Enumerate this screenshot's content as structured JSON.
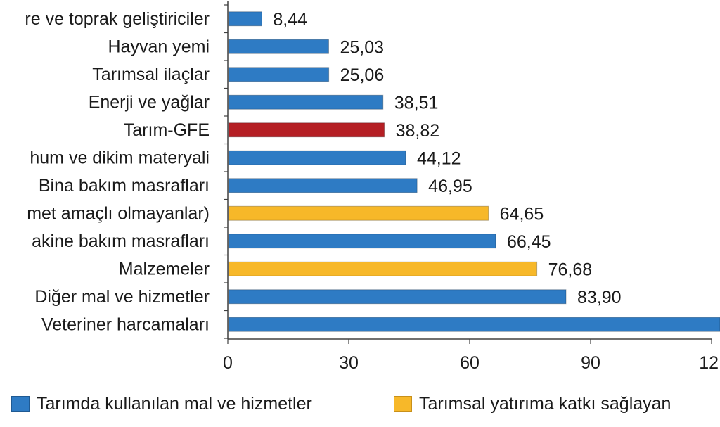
{
  "colors": {
    "mal_hizmet": "#2E7BC4",
    "yatirim": "#F7B829",
    "highlight": "#B51F24",
    "axis": "#404040",
    "text": "#1a1a1a"
  },
  "legend": {
    "items": [
      {
        "label": "Tarımda kullanılan mal ve hizmetler",
        "color": "#2E7BC4"
      },
      {
        "label": "Tarımsal yatırıma katkı sağlayan",
        "color": "#F7B829"
      }
    ]
  },
  "chart_data": {
    "type": "bar",
    "orientation": "horizontal",
    "title": "",
    "xlabel": "",
    "ylabel": "",
    "xlim": [
      0,
      120
    ],
    "xticks": [
      "0",
      "30",
      "60",
      "90",
      "12"
    ],
    "grid": false,
    "legend_position": "bottom",
    "categories": [
      "re ve toprak geliştiriciler",
      "Hayvan yemi",
      "Tarımsal ilaçlar",
      "Enerji ve yağlar",
      "Tarım-GFE",
      "hum ve dikim materyali",
      "Bina bakım masrafları",
      "met amaçlı olmayanlar)",
      "akine bakım masrafları",
      "Malzemeler",
      "Diğer mal ve hizmetler",
      "Veteriner harcamaları"
    ],
    "values": [
      8.44,
      25.03,
      25.06,
      38.51,
      38.82,
      44.12,
      46.95,
      64.65,
      66.45,
      76.68,
      83.9,
      125
    ],
    "value_labels": [
      "8,44",
      "25,03",
      "25,06",
      "38,51",
      "38,82",
      "44,12",
      "46,95",
      "64,65",
      "66,45",
      "76,68",
      "83,90",
      ""
    ],
    "bar_colors": [
      "#2E7BC4",
      "#2E7BC4",
      "#2E7BC4",
      "#2E7BC4",
      "#B51F24",
      "#2E7BC4",
      "#2E7BC4",
      "#F7B829",
      "#2E7BC4",
      "#F7B829",
      "#2E7BC4",
      "#2E7BC4"
    ]
  }
}
